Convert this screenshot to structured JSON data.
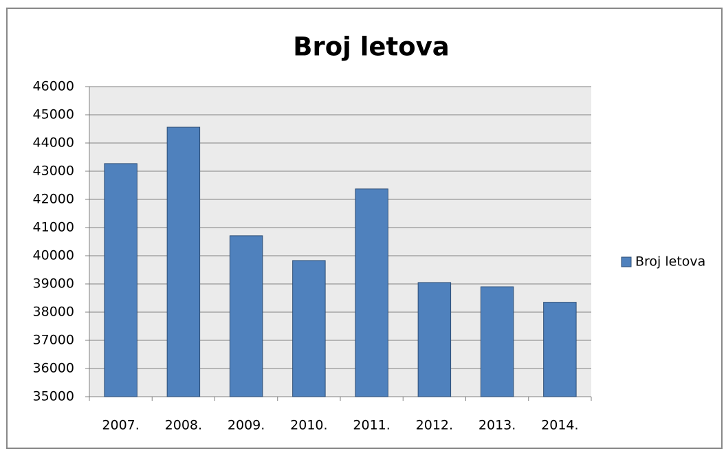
{
  "chart_data": {
    "type": "bar",
    "title": "Broj letova",
    "categories": [
      "2007.",
      "2008.",
      "2009.",
      "2010.",
      "2011.",
      "2012.",
      "2013.",
      "2014."
    ],
    "series": [
      {
        "name": "Broj letova",
        "color": "#4f81bd",
        "values": [
          43270,
          44560,
          40710,
          39830,
          42370,
          39050,
          38900,
          38350
        ]
      }
    ],
    "ylim": [
      35000,
      46000
    ],
    "yticks": [
      35000,
      36000,
      37000,
      38000,
      39000,
      40000,
      41000,
      42000,
      43000,
      44000,
      45000,
      46000
    ],
    "grid": true,
    "legend": "right"
  }
}
